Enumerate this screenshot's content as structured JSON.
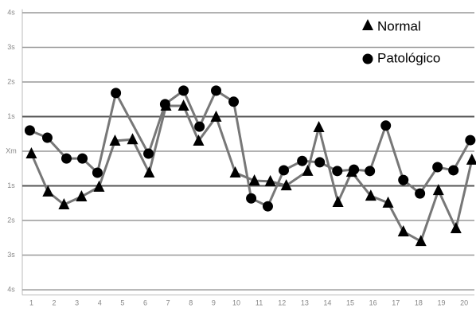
{
  "chart_data": {
    "type": "line",
    "categories": [
      1,
      2,
      3,
      4,
      5,
      6,
      7,
      8,
      9,
      10,
      11,
      12,
      13,
      14,
      15,
      16,
      17,
      18,
      19,
      20
    ],
    "xlim": [
      0.6,
      20.45
    ],
    "ylim": [
      -4.15,
      4.1
    ],
    "yticks": [
      {
        "value": 4,
        "label": "4s"
      },
      {
        "value": 3,
        "label": "3s"
      },
      {
        "value": 2,
        "label": "2s"
      },
      {
        "value": 1,
        "label": "1s"
      },
      {
        "value": 0,
        "label": "Xm"
      },
      {
        "value": -1,
        "label": "1s"
      },
      {
        "value": -2,
        "label": "2s"
      },
      {
        "value": -3,
        "label": "3s"
      },
      {
        "value": -4,
        "label": "4s"
      }
    ],
    "grid": true,
    "legend": "upper right",
    "series": [
      {
        "name": "Normal",
        "marker": "triangle",
        "color": "#777777",
        "marker_color": "#000000",
        "x": [
          1.0,
          1.73,
          2.43,
          3.2,
          3.97,
          4.67,
          5.44,
          6.17,
          6.91,
          7.68,
          8.34,
          9.11,
          9.95,
          10.79,
          11.49,
          12.19,
          13.13,
          13.62,
          14.46,
          15.06,
          15.9,
          16.66,
          17.33,
          18.1,
          18.87,
          19.64,
          20.34
        ],
        "values": [
          -0.07,
          -1.17,
          -1.54,
          -1.31,
          -1.03,
          0.3,
          0.34,
          -0.62,
          1.31,
          1.31,
          0.3,
          0.99,
          -0.62,
          -0.85,
          -0.87,
          -0.99,
          -0.57,
          0.69,
          -1.47,
          -0.6,
          -1.29,
          -1.49,
          -2.32,
          -2.6,
          -1.13,
          -2.23,
          -0.25
        ]
      },
      {
        "name": "Patológico",
        "marker": "circle",
        "color": "#777777",
        "marker_color": "#000000",
        "x": [
          0.93,
          1.7,
          2.54,
          3.24,
          3.9,
          4.71,
          6.14,
          6.87,
          7.68,
          8.38,
          9.11,
          9.88,
          10.65,
          11.38,
          12.08,
          12.89,
          13.66,
          14.43,
          15.16,
          15.86,
          16.56,
          17.33,
          18.06,
          18.83,
          19.53,
          20.27
        ],
        "values": [
          0.6,
          0.39,
          -0.21,
          -0.21,
          -0.62,
          1.68,
          -0.07,
          1.36,
          1.75,
          0.71,
          1.75,
          1.43,
          -1.36,
          -1.59,
          -0.55,
          -0.28,
          -0.32,
          -0.57,
          -0.53,
          -0.57,
          0.74,
          -0.83,
          -1.22,
          -0.46,
          -0.55,
          0.32
        ]
      }
    ]
  }
}
